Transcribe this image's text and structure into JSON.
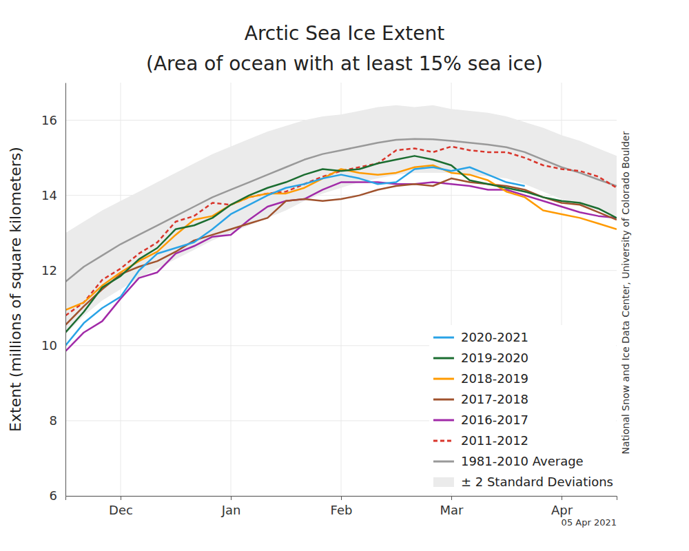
{
  "chart_data": {
    "type": "line",
    "title": "Arctic Sea Ice Extent",
    "subtitle": "(Area of ocean with at least 15% sea ice)",
    "y_label": "Extent (millions of square kilometers)",
    "annotations": [
      "05 Apr 2021",
      "National Snow and Ice Data Center, University of Colorado Boulder"
    ],
    "categories": [
      null,
      null,
      null,
      "Dec",
      null,
      null,
      null,
      null,
      null,
      "Jan",
      null,
      null,
      null,
      null,
      null,
      "Feb",
      null,
      null,
      null,
      null,
      null,
      "Mar",
      null,
      null,
      null,
      null,
      null,
      "Apr",
      null,
      null,
      null
    ],
    "ylim": [
      6,
      17
    ],
    "yticks": [
      6,
      8,
      10,
      12,
      14,
      16
    ],
    "grid": true,
    "legend": "lower right",
    "series": [
      {
        "name": "2020-2021",
        "color": "#29a3e6",
        "values": [
          10.0,
          10.6,
          11.0,
          11.3,
          12.0,
          12.45,
          12.6,
          12.75,
          13.1,
          13.5,
          13.75,
          14.0,
          14.2,
          14.3,
          14.45,
          14.55,
          14.45,
          14.3,
          14.35,
          14.7,
          14.75,
          14.65,
          14.75,
          14.55,
          14.35,
          14.25,
          null,
          null,
          null,
          null,
          null
        ]
      },
      {
        "name": "2019-2020",
        "color": "#1b6d30",
        "values": [
          10.35,
          10.9,
          11.55,
          11.85,
          12.3,
          12.6,
          13.1,
          13.2,
          13.4,
          13.75,
          14.0,
          14.2,
          14.35,
          14.55,
          14.7,
          14.65,
          14.7,
          14.85,
          14.95,
          15.05,
          14.95,
          14.8,
          14.4,
          14.3,
          14.2,
          14.1,
          13.95,
          13.85,
          13.8,
          13.65,
          13.4
        ]
      },
      {
        "name": "2018-2019",
        "color": "#ff9a00",
        "values": [
          10.95,
          11.15,
          11.6,
          11.95,
          12.25,
          12.5,
          12.95,
          13.35,
          13.45,
          13.75,
          13.95,
          14.05,
          14.05,
          14.2,
          14.45,
          14.7,
          14.6,
          14.55,
          14.6,
          14.75,
          14.8,
          14.6,
          14.55,
          14.4,
          14.1,
          13.95,
          13.6,
          13.5,
          13.4,
          13.25,
          13.1
        ]
      },
      {
        "name": "2017-2018",
        "color": "#a0522d",
        "values": [
          10.55,
          11.05,
          11.5,
          11.9,
          12.1,
          12.25,
          12.5,
          12.8,
          12.95,
          13.1,
          13.25,
          13.4,
          13.85,
          13.9,
          13.85,
          13.9,
          14.0,
          14.15,
          14.25,
          14.3,
          14.25,
          14.45,
          14.35,
          14.3,
          14.25,
          14.15,
          13.95,
          13.8,
          13.75,
          13.55,
          13.35
        ]
      },
      {
        "name": "2016-2017",
        "color": "#a12aa8",
        "values": [
          9.85,
          10.35,
          10.65,
          11.25,
          11.8,
          11.95,
          12.45,
          12.65,
          12.9,
          12.95,
          13.35,
          13.7,
          13.85,
          13.9,
          14.15,
          14.35,
          14.35,
          14.35,
          14.3,
          14.3,
          14.35,
          14.3,
          14.25,
          14.15,
          14.15,
          14.0,
          13.85,
          13.7,
          13.55,
          13.45,
          13.4
        ]
      },
      {
        "name": "2011-2012",
        "color": "#d9352b",
        "line_style": "dashed",
        "values": [
          10.8,
          11.15,
          11.75,
          12.05,
          12.45,
          12.75,
          13.3,
          13.45,
          13.8,
          13.75,
          13.95,
          14.05,
          14.1,
          14.3,
          14.5,
          14.65,
          14.75,
          14.85,
          15.2,
          15.25,
          15.15,
          15.3,
          15.2,
          15.15,
          15.15,
          15.0,
          14.8,
          14.7,
          14.65,
          14.5,
          14.2
        ]
      },
      {
        "name": "1981-2010 Average",
        "color": "#999999",
        "values": [
          11.7,
          12.1,
          12.4,
          12.7,
          12.95,
          13.2,
          13.45,
          13.7,
          13.95,
          14.15,
          14.35,
          14.55,
          14.75,
          14.95,
          15.1,
          15.2,
          15.3,
          15.4,
          15.48,
          15.5,
          15.49,
          15.45,
          15.4,
          15.35,
          15.28,
          15.15,
          14.95,
          14.75,
          14.6,
          14.42,
          14.25
        ]
      },
      {
        "name": "± 2 Standard Deviations",
        "type": "area",
        "color": "#ebebeb",
        "lower": [
          10.3,
          10.8,
          11.2,
          11.5,
          11.8,
          12.05,
          12.3,
          12.55,
          12.8,
          13.0,
          13.2,
          13.4,
          13.6,
          13.85,
          14.05,
          14.2,
          14.35,
          14.45,
          14.55,
          14.6,
          14.6,
          14.6,
          14.55,
          14.5,
          14.45,
          14.3,
          14.1,
          13.9,
          13.75,
          13.6,
          13.45
        ],
        "upper": [
          13.0,
          13.3,
          13.6,
          13.85,
          14.1,
          14.35,
          14.6,
          14.85,
          15.1,
          15.3,
          15.5,
          15.7,
          15.85,
          16.0,
          16.1,
          16.15,
          16.25,
          16.35,
          16.4,
          16.35,
          16.4,
          16.3,
          16.25,
          16.2,
          16.1,
          15.95,
          15.8,
          15.6,
          15.45,
          15.25,
          15.05
        ]
      }
    ]
  }
}
